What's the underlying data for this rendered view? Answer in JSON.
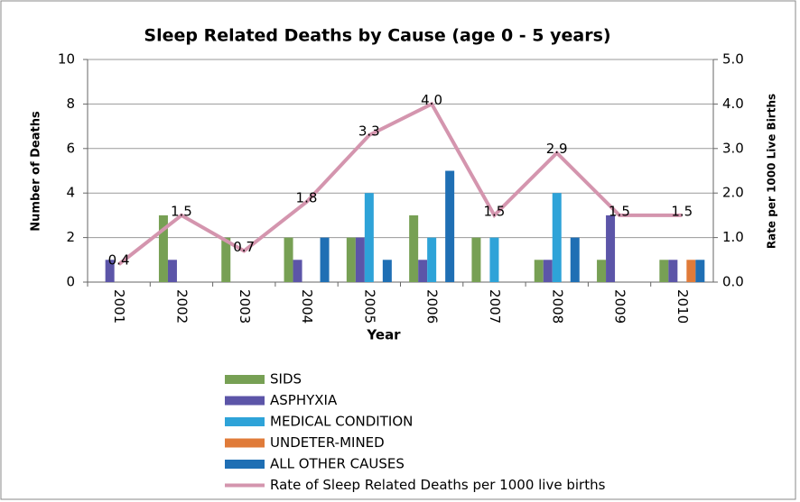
{
  "chart_data": {
    "type": "bar",
    "title": "Sleep Related Deaths by Cause (age 0 - 5 years)",
    "x_label": "Year",
    "y_label": "Number of Deaths",
    "y2_label": "Rate per 1000 Live Births",
    "categories": [
      "2001",
      "2002",
      "2003",
      "2004",
      "2005",
      "2006",
      "2007",
      "2008",
      "2009",
      "2010"
    ],
    "series": [
      {
        "name": "SIDS",
        "color": "#77a054",
        "values": [
          0,
          3,
          2,
          2,
          2,
          3,
          2,
          1,
          1,
          1
        ]
      },
      {
        "name": "ASPHYXIA",
        "color": "#5c55a8",
        "values": [
          1,
          1,
          0,
          1,
          2,
          1,
          0,
          1,
          3,
          1
        ]
      },
      {
        "name": "MEDICAL CONDITION",
        "color": "#2ea3d8",
        "values": [
          0,
          0,
          0,
          0,
          4,
          2,
          2,
          4,
          0,
          0
        ]
      },
      {
        "name": "UNDETER-MINED",
        "color": "#e07b39",
        "values": [
          0,
          0,
          0,
          0,
          0,
          0,
          0,
          0,
          0,
          1
        ]
      },
      {
        "name": "ALL OTHER CAUSES",
        "color": "#1f6fb4",
        "values": [
          0,
          0,
          0,
          2,
          1,
          5,
          0,
          2,
          0,
          1
        ]
      },
      {
        "name": "Rate of Sleep Related Deaths per 1000 live births",
        "color": "#d495ae",
        "type": "line",
        "axis": "y2",
        "values": [
          0.4,
          1.5,
          0.7,
          1.8,
          3.3,
          4.0,
          1.5,
          2.9,
          1.5,
          1.5
        ],
        "value_labels": [
          "0.4",
          "1.5",
          "0.7",
          "1.8",
          "3.3",
          "4.0",
          "1.5",
          "2.9",
          "1.5",
          "1.5"
        ]
      }
    ],
    "ylim": [
      0,
      10
    ],
    "yticks": [
      0,
      2,
      4,
      6,
      8,
      10
    ],
    "y2lim": [
      0,
      5
    ],
    "y2ticks": [
      {
        "value": 0,
        "label": "0.0"
      },
      {
        "value": 1,
        "label": "1.0"
      },
      {
        "value": 2,
        "label": "2.0"
      },
      {
        "value": 3,
        "label": "3.0"
      },
      {
        "value": 4,
        "label": "4.0"
      },
      {
        "value": 5,
        "label": "5.0"
      }
    ],
    "grid": true,
    "legend": "bottom"
  }
}
